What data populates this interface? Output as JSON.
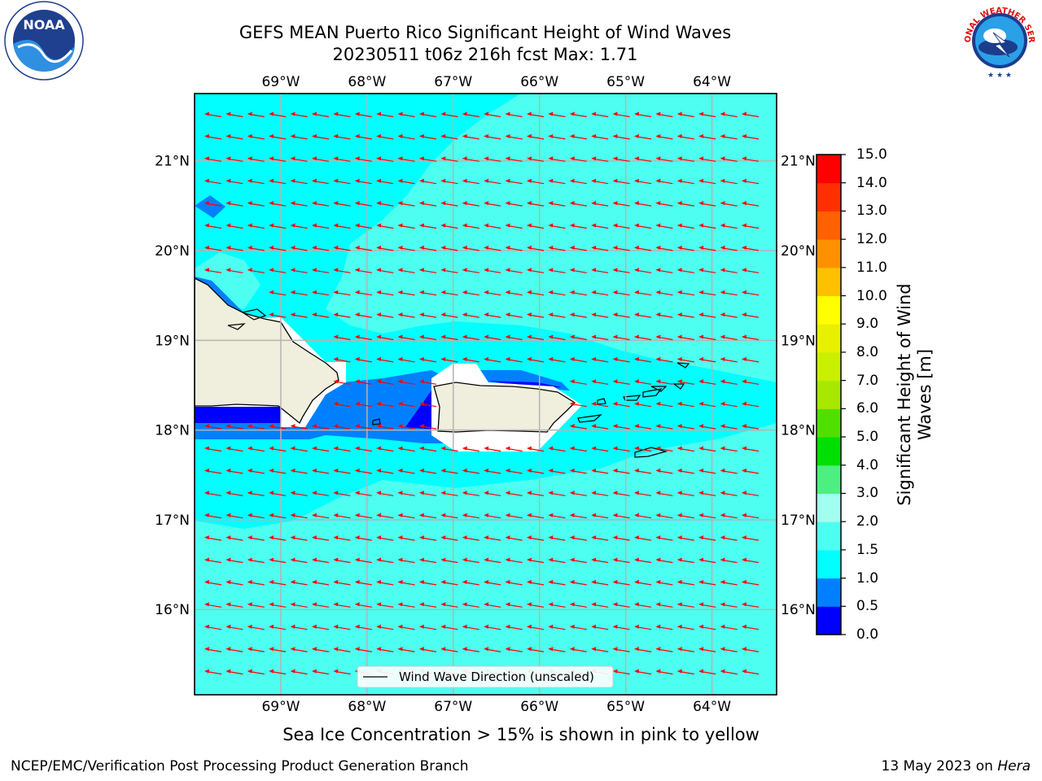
{
  "header": {
    "title_line1": "GEFS MEAN Puerto Rico Significant Height of Wind Waves",
    "title_line2": "20230511 t06z 216h fcst   Max: 1.71"
  },
  "map": {
    "lon_ticks": [
      "69°W",
      "68°W",
      "67°W",
      "66°W",
      "65°W",
      "64°W"
    ],
    "lon_values": [
      -69,
      -68,
      -67,
      -66,
      -65,
      -64
    ],
    "lat_ticks": [
      "21°N",
      "20°N",
      "19°N",
      "18°N",
      "17°N",
      "16°N"
    ],
    "lat_values": [
      21,
      20,
      19,
      18,
      17,
      16
    ],
    "lon_range": [
      -70,
      -63.25
    ],
    "lat_range": [
      15.05,
      21.75
    ],
    "wind_direction": "east-to-west",
    "legend_label": "Wind Wave Direction (unscaled)",
    "colors": {
      "sea_low": "#00ffff",
      "sea_mid": "#4dfff0",
      "shallow": "#0080ff",
      "deep_blue": "#0000ff",
      "land": "#f0eedc",
      "arrow": "#ff0000",
      "grid": "#b4b4b4"
    }
  },
  "colorbar": {
    "title": "Significant Height of Wind Waves [m]",
    "levels": [
      "0.0",
      "0.5",
      "1.0",
      "1.5",
      "2.0",
      "3.0",
      "4.0",
      "5.0",
      "6.0",
      "7.0",
      "8.0",
      "9.0",
      "10.0",
      "11.0",
      "12.0",
      "13.0",
      "14.0",
      "15.0"
    ],
    "colors": [
      "#0000ff",
      "#0080ff",
      "#00ffff",
      "#4dfff0",
      "#a0fff0",
      "#4df080",
      "#00e000",
      "#50e000",
      "#a8e800",
      "#c8f000",
      "#e8f000",
      "#ffff00",
      "#ffc000",
      "#ff9000",
      "#ff6000",
      "#ff3000",
      "#ff0000"
    ]
  },
  "ice_note": "Sea Ice Concentration > 15% is shown in pink to yellow",
  "footer": {
    "left": "NCEP/EMC/Verification Post Processing Product Generation Branch",
    "right_prefix": "13 May 2023 on ",
    "right_host": "Hera"
  },
  "logos": {
    "noaa_text": "NOAA",
    "nws_text": "NATIONAL WEATHER SERVICE"
  }
}
